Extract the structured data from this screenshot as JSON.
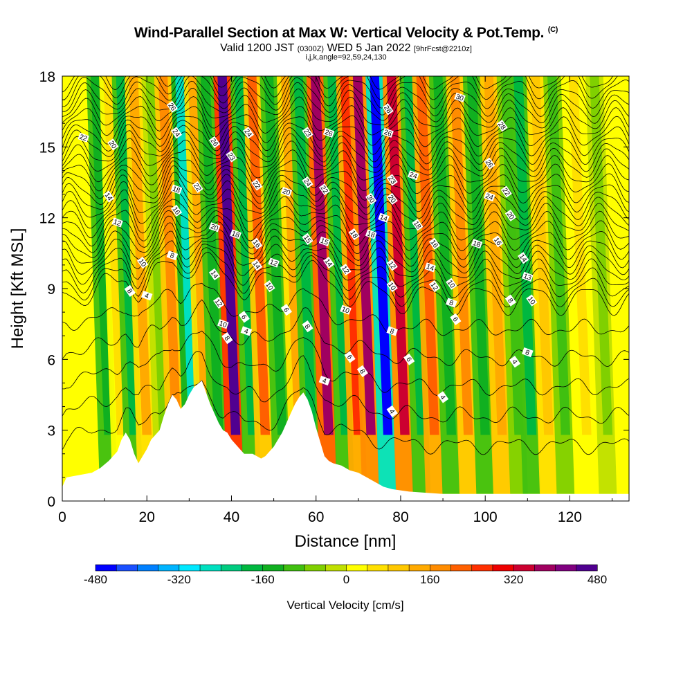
{
  "header": {
    "title": "Wind-Parallel Section at Max W: Vertical Velocity & Pot.Temp.",
    "copyright": "(C)",
    "subtitle_main": "Valid 1200 JST",
    "subtitle_utc": "(0300Z)",
    "subtitle_date": "WED 5 Jan 2022",
    "subtitle_fcst": "[9hrFcst@2210z]",
    "params": "i,j,k,angle=92,59,24,130"
  },
  "chart_data": {
    "type": "heatmap",
    "xlabel": "Distance [nm]",
    "ylabel": "Height [Kft MSL]",
    "xlim": [
      0,
      134
    ],
    "ylim": [
      0,
      18
    ],
    "xticks": [
      0,
      20,
      40,
      60,
      80,
      100,
      120
    ],
    "yticks": [
      0,
      3,
      6,
      9,
      12,
      15,
      18
    ],
    "colorbar": {
      "title": "Vertical Velocity [cm/s]",
      "range": [
        -480,
        480
      ],
      "ticks": [
        -480,
        -320,
        -160,
        0,
        160,
        320,
        480
      ],
      "colors": [
        "#0000ff",
        "#1a50ff",
        "#0080ff",
        "#00b4ff",
        "#00e8ff",
        "#00e0c0",
        "#00cc80",
        "#00b840",
        "#10b020",
        "#40c010",
        "#80d000",
        "#c0e000",
        "#ffff00",
        "#ffe000",
        "#ffc800",
        "#ffaa00",
        "#ff8c00",
        "#ff6000",
        "#ff3000",
        "#ee0000",
        "#cc0030",
        "#a00060",
        "#800080",
        "#500090"
      ]
    },
    "velocity_bands": [
      {
        "x": 11,
        "w": -150
      },
      {
        "x": 14,
        "w": 60
      },
      {
        "x": 17,
        "w": -180
      },
      {
        "x": 20,
        "w": 120
      },
      {
        "x": 24,
        "w": -60
      },
      {
        "x": 27,
        "w": 180
      },
      {
        "x": 31,
        "w": -280
      },
      {
        "x": 34,
        "w": 120
      },
      {
        "x": 37,
        "w": -150
      },
      {
        "x": 41,
        "w": 470
      },
      {
        "x": 45,
        "w": -200
      },
      {
        "x": 48,
        "w": 200
      },
      {
        "x": 52,
        "w": -150
      },
      {
        "x": 56,
        "w": 140
      },
      {
        "x": 59,
        "w": -180
      },
      {
        "x": 63,
        "w": 380
      },
      {
        "x": 67,
        "w": -170
      },
      {
        "x": 70,
        "w": 250
      },
      {
        "x": 73,
        "w": 360
      },
      {
        "x": 77,
        "w": -460
      },
      {
        "x": 81,
        "w": 330
      },
      {
        "x": 85,
        "w": -170
      },
      {
        "x": 88,
        "w": 220
      },
      {
        "x": 92,
        "w": -150
      },
      {
        "x": 96,
        "w": 160
      },
      {
        "x": 100,
        "w": -160
      },
      {
        "x": 104,
        "w": 150
      },
      {
        "x": 108,
        "w": -110
      },
      {
        "x": 111,
        "w": -170
      },
      {
        "x": 115,
        "w": 90
      },
      {
        "x": 119,
        "w": -100
      },
      {
        "x": 124,
        "w": 60
      },
      {
        "x": 129,
        "w": -70
      }
    ],
    "terrain": {
      "x": [
        0,
        1,
        7,
        9,
        11,
        13,
        14,
        15,
        16,
        17,
        18,
        19,
        20,
        21,
        23,
        24,
        25,
        26,
        27,
        28,
        29,
        30,
        31,
        33,
        34,
        35,
        36,
        37,
        38,
        39,
        40,
        41,
        42,
        43,
        44,
        45,
        47,
        48,
        49,
        50,
        51,
        52,
        53,
        54,
        55,
        56,
        57,
        58,
        59,
        60,
        61,
        62,
        63,
        64,
        66,
        68,
        70,
        72,
        74,
        76,
        78,
        82,
        90,
        100,
        134
      ],
      "y": [
        0.6,
        1.0,
        1.2,
        1.4,
        1.7,
        2.1,
        2.6,
        2.9,
        2.6,
        2.0,
        1.6,
        1.9,
        2.2,
        2.6,
        3.0,
        3.6,
        4.1,
        4.5,
        4.3,
        3.9,
        4.1,
        4.5,
        4.8,
        5.1,
        4.6,
        4.1,
        3.7,
        3.3,
        3.0,
        2.9,
        2.6,
        2.4,
        2.2,
        2.0,
        2.0,
        2.0,
        1.8,
        1.9,
        2.1,
        2.3,
        2.6,
        2.9,
        3.3,
        3.7,
        4.1,
        4.4,
        4.6,
        4.3,
        3.8,
        3.1,
        2.5,
        1.9,
        1.7,
        1.6,
        1.5,
        1.3,
        1.2,
        1.0,
        0.8,
        0.6,
        0.5,
        0.4,
        0.3,
        0.3,
        0.3
      ]
    },
    "theta_labels": [
      {
        "x": 5,
        "y": 15.4,
        "t": "22"
      },
      {
        "x": 12,
        "y": 15.1,
        "t": "20"
      },
      {
        "x": 11,
        "y": 12.9,
        "t": "14"
      },
      {
        "x": 13,
        "y": 11.8,
        "t": "12"
      },
      {
        "x": 19,
        "y": 10.1,
        "t": "10"
      },
      {
        "x": 16,
        "y": 8.9,
        "t": "8"
      },
      {
        "x": 20,
        "y": 8.7,
        "t": "4"
      },
      {
        "x": 26,
        "y": 16.7,
        "t": "26"
      },
      {
        "x": 27,
        "y": 15.6,
        "t": "24"
      },
      {
        "x": 27,
        "y": 13.2,
        "t": "18"
      },
      {
        "x": 27,
        "y": 12.3,
        "t": "16"
      },
      {
        "x": 32,
        "y": 13.3,
        "t": "22"
      },
      {
        "x": 26,
        "y": 10.4,
        "t": "8"
      },
      {
        "x": 36,
        "y": 15.2,
        "t": "26"
      },
      {
        "x": 40,
        "y": 14.6,
        "t": "23"
      },
      {
        "x": 36,
        "y": 11.6,
        "t": "20"
      },
      {
        "x": 36,
        "y": 9.6,
        "t": "14"
      },
      {
        "x": 37,
        "y": 8.4,
        "t": "12"
      },
      {
        "x": 38,
        "y": 7.5,
        "t": "10"
      },
      {
        "x": 39,
        "y": 6.9,
        "t": "8"
      },
      {
        "x": 43,
        "y": 7.8,
        "t": "6"
      },
      {
        "x": 43.5,
        "y": 7.2,
        "t": "4"
      },
      {
        "x": 44,
        "y": 15.6,
        "t": "24"
      },
      {
        "x": 46,
        "y": 13.4,
        "t": "22"
      },
      {
        "x": 41,
        "y": 11.3,
        "t": "18"
      },
      {
        "x": 46,
        "y": 10.9,
        "t": "16"
      },
      {
        "x": 46,
        "y": 10.0,
        "t": "14"
      },
      {
        "x": 50,
        "y": 10.1,
        "t": "12"
      },
      {
        "x": 49,
        "y": 9.1,
        "t": "10"
      },
      {
        "x": 53,
        "y": 8.1,
        "t": "6"
      },
      {
        "x": 53,
        "y": 13.1,
        "t": "20"
      },
      {
        "x": 58,
        "y": 15.6,
        "t": "23"
      },
      {
        "x": 58,
        "y": 13.5,
        "t": "24"
      },
      {
        "x": 63,
        "y": 15.6,
        "t": "26"
      },
      {
        "x": 62,
        "y": 13.2,
        "t": "22"
      },
      {
        "x": 58,
        "y": 11.1,
        "t": "15"
      },
      {
        "x": 62,
        "y": 11.0,
        "t": "15"
      },
      {
        "x": 63,
        "y": 10.1,
        "t": "14"
      },
      {
        "x": 67,
        "y": 9.8,
        "t": "12"
      },
      {
        "x": 67,
        "y": 8.1,
        "t": "10"
      },
      {
        "x": 58,
        "y": 7.4,
        "t": "8"
      },
      {
        "x": 68,
        "y": 6.1,
        "t": "6"
      },
      {
        "x": 62,
        "y": 5.1,
        "t": "4"
      },
      {
        "x": 71,
        "y": 5.5,
        "t": "8"
      },
      {
        "x": 69,
        "y": 11.3,
        "t": "18"
      },
      {
        "x": 73,
        "y": 11.3,
        "t": "18"
      },
      {
        "x": 73,
        "y": 12.8,
        "t": "30"
      },
      {
        "x": 77,
        "y": 16.6,
        "t": "28"
      },
      {
        "x": 77,
        "y": 15.6,
        "t": "26"
      },
      {
        "x": 78,
        "y": 13.6,
        "t": "23"
      },
      {
        "x": 78,
        "y": 12.8,
        "t": "20"
      },
      {
        "x": 76,
        "y": 12.0,
        "t": "14"
      },
      {
        "x": 78,
        "y": 10.0,
        "t": "12"
      },
      {
        "x": 78,
        "y": 9.1,
        "t": "10"
      },
      {
        "x": 78,
        "y": 7.2,
        "t": "8"
      },
      {
        "x": 82,
        "y": 6.0,
        "t": "6"
      },
      {
        "x": 78,
        "y": 3.8,
        "t": "4"
      },
      {
        "x": 83,
        "y": 13.8,
        "t": "24"
      },
      {
        "x": 84,
        "y": 11.7,
        "t": "18"
      },
      {
        "x": 88,
        "y": 10.9,
        "t": "16"
      },
      {
        "x": 87,
        "y": 9.9,
        "t": "14"
      },
      {
        "x": 88,
        "y": 9.1,
        "t": "12"
      },
      {
        "x": 92,
        "y": 9.2,
        "t": "10"
      },
      {
        "x": 92,
        "y": 8.4,
        "t": "8"
      },
      {
        "x": 93,
        "y": 7.7,
        "t": "6"
      },
      {
        "x": 90,
        "y": 4.4,
        "t": "4"
      },
      {
        "x": 94,
        "y": 17.1,
        "t": "30"
      },
      {
        "x": 104,
        "y": 15.9,
        "t": "28"
      },
      {
        "x": 101,
        "y": 14.3,
        "t": "26"
      },
      {
        "x": 101,
        "y": 12.9,
        "t": "24"
      },
      {
        "x": 105,
        "y": 13.1,
        "t": "22"
      },
      {
        "x": 106,
        "y": 12.1,
        "t": "20"
      },
      {
        "x": 98,
        "y": 10.9,
        "t": "18"
      },
      {
        "x": 103,
        "y": 11.0,
        "t": "16"
      },
      {
        "x": 109,
        "y": 10.3,
        "t": "14"
      },
      {
        "x": 110,
        "y": 9.5,
        "t": "13"
      },
      {
        "x": 106,
        "y": 8.5,
        "t": "8"
      },
      {
        "x": 111,
        "y": 8.5,
        "t": "10"
      },
      {
        "x": 110,
        "y": 6.3,
        "t": "8"
      },
      {
        "x": 107,
        "y": 5.9,
        "t": "4"
      }
    ]
  }
}
